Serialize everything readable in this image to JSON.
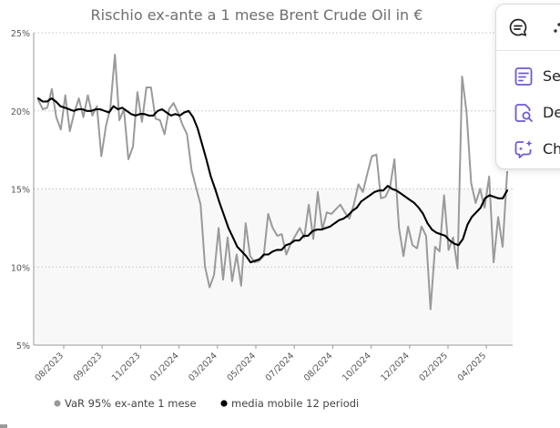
{
  "chart_data": {
    "type": "line",
    "title": "Rischio ex-ante a 1 mese Brent Crude Oil in €",
    "y_tick_labels": [
      "25%",
      "20%",
      "15%",
      "10%",
      "5%"
    ],
    "y_ticks": [
      25,
      20,
      15,
      10,
      5
    ],
    "ylim": [
      5,
      25
    ],
    "x_tick_labels": [
      "08/2023",
      "09/2023",
      "11/2023",
      "01/2024",
      "03/2024",
      "05/2024",
      "07/2024",
      "08/2024",
      "10/2024",
      "12/2024",
      "02/2025",
      "04/2025"
    ],
    "grid": true,
    "legend_position": "bottom",
    "series": [
      {
        "name": "VaR 95% ex-ante 1 mese",
        "color": "#9a9a9a",
        "values": [
          20.7,
          20.1,
          20.2,
          21.4,
          19.6,
          18.8,
          21.0,
          18.7,
          19.9,
          20.8,
          19.6,
          21.0,
          19.7,
          20.3,
          17.1,
          19.0,
          20.2,
          23.6,
          19.4,
          20.1,
          16.9,
          17.7,
          21.2,
          19.3,
          21.5,
          21.5,
          19.5,
          19.4,
          18.5,
          20.1,
          20.5,
          19.9,
          19.1,
          18.5,
          16.2,
          15.1,
          14.0,
          10.0,
          8.7,
          9.5,
          12.5,
          9.2,
          11.9,
          9.1,
          10.8,
          8.8,
          12.8,
          10.7,
          10.3,
          10.4,
          10.7,
          13.4,
          12.5,
          12.0,
          12.1,
          10.8,
          11.5,
          12.0,
          12.5,
          11.9,
          14.0,
          11.8,
          14.8,
          12.4,
          13.5,
          13.4,
          13.7,
          14.0,
          13.5,
          13.1,
          14.0,
          15.3,
          14.8,
          16.0,
          17.1,
          17.2,
          14.4,
          14.5,
          15.1,
          16.9,
          12.5,
          10.7,
          12.6,
          11.4,
          11.2,
          12.6,
          12.0,
          7.3,
          11.3,
          11.0,
          14.6,
          11.1,
          11.9,
          9.9,
          22.2,
          19.9,
          15.4,
          14.1,
          15.0,
          13.8,
          15.8,
          10.3,
          13.2,
          11.3,
          16.1
        ]
      },
      {
        "name": "media mobile 12 periodi",
        "color": "#000000",
        "values": [
          20.8,
          20.6,
          20.6,
          20.8,
          20.6,
          20.3,
          20.2,
          20.1,
          20.0,
          20.1,
          20.1,
          20.0,
          20.0,
          20.1,
          20.1,
          20.0,
          19.9,
          20.3,
          20.1,
          20.2,
          20.0,
          19.8,
          19.7,
          19.8,
          19.8,
          19.7,
          19.7,
          20.0,
          20.1,
          19.9,
          19.7,
          19.8,
          19.7,
          19.9,
          20.0,
          19.6,
          18.9,
          17.9,
          16.9,
          15.8,
          15.0,
          14.1,
          13.3,
          12.5,
          11.9,
          11.3,
          11.0,
          10.7,
          10.3,
          10.4,
          10.5,
          10.8,
          10.8,
          11.0,
          11.1,
          11.1,
          11.4,
          11.5,
          11.7,
          11.7,
          12.0,
          12.0,
          12.3,
          12.4,
          12.4,
          12.5,
          12.6,
          12.8,
          13.0,
          13.1,
          13.3,
          13.6,
          13.8,
          14.2,
          14.4,
          14.6,
          14.8,
          14.9,
          14.9,
          15.2,
          15.0,
          14.9,
          14.7,
          14.5,
          14.3,
          14.1,
          13.8,
          13.4,
          12.8,
          12.4,
          12.2,
          12.1,
          12.0,
          11.7,
          11.5,
          11.4,
          11.8,
          12.7,
          13.2,
          13.5,
          13.8,
          14.4,
          14.6,
          14.5,
          14.4,
          14.4,
          14.9
        ]
      }
    ]
  },
  "popup": {
    "items": [
      {
        "label": "Se",
        "icon": "summary-document-icon"
      },
      {
        "label": "De",
        "icon": "document-search-icon"
      },
      {
        "label": "Ch",
        "icon": "chat-sparkle-icon"
      }
    ],
    "head_icons": [
      "chat-bubble-icon",
      "more-icon"
    ],
    "accent_color": "#6b5bd2"
  }
}
